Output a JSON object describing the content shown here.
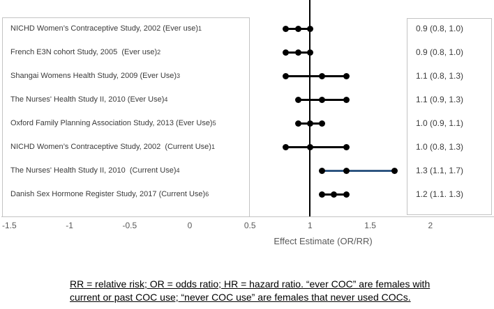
{
  "chart_data": {
    "type": "forest",
    "title": "",
    "xlabel": "Effect Estimate (OR/RR)",
    "x_ticks": [
      -1.5,
      -1,
      -0.5,
      0,
      0.5,
      1,
      1.5,
      2
    ],
    "x_tick_labels": [
      "-1.5",
      "-1",
      "-0.5",
      "0",
      "0.5",
      "1",
      "1.5",
      "2"
    ],
    "xlim": [
      -1.58,
      2.53
    ],
    "reference_line_x": 1,
    "grid": false,
    "legend": "none",
    "studies": [
      {
        "label": "NICHD Women’s Contraceptive Study, 2002 (Ever use)",
        "ref": "1",
        "estimate": 0.9,
        "ci_low": 0.8,
        "ci_high": 1.0,
        "value_text": "0.9 (0.8, 1.0)",
        "line_color": "#000000"
      },
      {
        "label": "French E3N cohort Study, 2005  (Ever use)",
        "ref": "2",
        "estimate": 0.9,
        "ci_low": 0.8,
        "ci_high": 1.0,
        "value_text": "0.9 (0.8, 1.0)",
        "line_color": "#000000"
      },
      {
        "label": "Shangai Womens Health Study, 2009 (Ever Use)",
        "ref": "3",
        "estimate": 1.1,
        "ci_low": 0.8,
        "ci_high": 1.3,
        "value_text": "1.1 (0.8, 1.3)",
        "line_color": "#000000"
      },
      {
        "label": "The Nurses' Health Study II, 2010 (Ever Use)",
        "ref": "4",
        "estimate": 1.1,
        "ci_low": 0.9,
        "ci_high": 1.3,
        "value_text": "1.1 (0.9, 1.3)",
        "line_color": "#000000"
      },
      {
        "label": "Oxford Family Planning Association Study, 2013 (Ever Use)",
        "ref": "5",
        "estimate": 1.0,
        "ci_low": 0.9,
        "ci_high": 1.1,
        "value_text": "1.0 (0.9, 1.1)",
        "line_color": "#000000"
      },
      {
        "label": "NICHD Women’s Contraceptive Study, 2002  (Current Use)",
        "ref": "1",
        "estimate": 1.0,
        "ci_low": 0.8,
        "ci_high": 1.3,
        "value_text": "1.0 (0.8, 1.3)",
        "line_color": "#000000"
      },
      {
        "label": "The Nurses' Health Study II, 2010  (Current Use)",
        "ref": "4",
        "estimate": 1.3,
        "ci_low": 1.1,
        "ci_high": 1.7,
        "value_text": "1.3 (1.1, 1.7)",
        "line_color": "#2f5681"
      },
      {
        "label": "Danish Sex Hormone Register Study, 2017 (Current Use)",
        "ref": "6",
        "estimate": 1.2,
        "ci_low": 1.1,
        "ci_high": 1.3,
        "value_text": "1.2 (1.1. 1.3)",
        "line_color": "#000000"
      }
    ]
  },
  "colors": {
    "marker": "#000000",
    "reference_line": "#000000",
    "highlight_line": "#2f5681",
    "box_border": "#c3c3c3",
    "axis_text": "#595959",
    "label_text": "#3a3a3a"
  },
  "caption": {
    "line1": "RR = relative risk; OR = odds ratio; HR = hazard ratio. “ever COC” are females with",
    "line2": "current or past COC use; “never COC use” are females that never used COCs."
  }
}
